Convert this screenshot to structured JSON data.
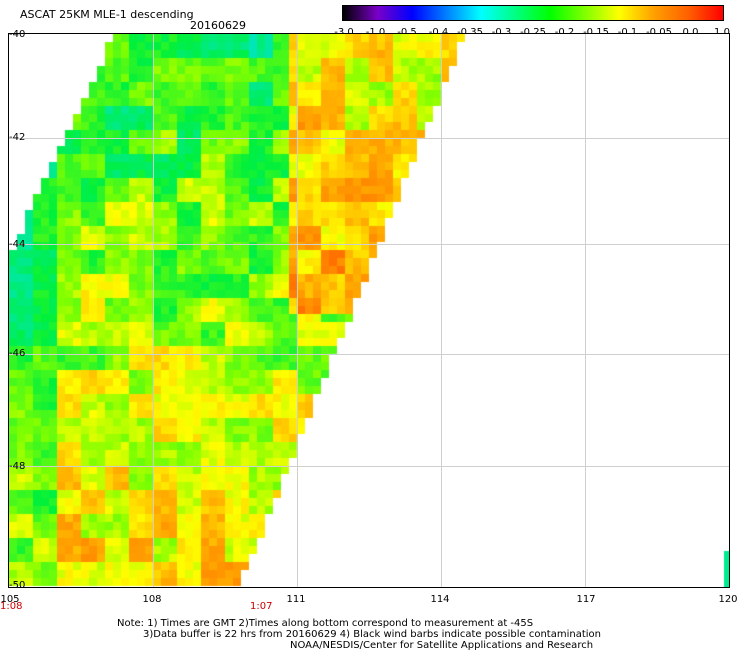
{
  "header": {
    "title": "ASCAT 25KM MLE-1 descending",
    "date": "20160629"
  },
  "colorbar": {
    "labels": [
      "-3.0",
      "-1.0",
      "-0.5",
      "-0.4",
      "-0.35",
      "-0.3",
      "-0.25",
      "-0.2",
      "-0.15",
      "-0.1",
      "-0.05",
      "0.0",
      "1.0"
    ],
    "colors": [
      "#000000",
      "#7a00c8",
      "#0000ff",
      "#0080ff",
      "#00ffff",
      "#00ff80",
      "#00ff00",
      "#80ff00",
      "#ffff00",
      "#ffa000",
      "#ff6000",
      "#ff0000"
    ]
  },
  "axes": {
    "x_ticks": [
      "105",
      "108",
      "111",
      "114",
      "117",
      "120"
    ],
    "y_ticks": [
      "-40",
      "-42",
      "-44",
      "-46",
      "-48",
      "-50"
    ],
    "times": [
      "1:08",
      "1:07"
    ]
  },
  "map_data": {
    "lon_range": [
      105,
      120
    ],
    "lat_range": [
      -50,
      -40
    ],
    "swath_edge_east": [
      [
        114.5,
        -40
      ],
      [
        109.8,
        -50
      ]
    ],
    "swath_edge_west": [
      [
        107.2,
        -40
      ],
      [
        105,
        -44
      ],
      [
        105,
        -50
      ]
    ]
  },
  "notes": {
    "line1": "Note: 1) Times are GMT 2)Times along bottom correspond to measurement at -45S",
    "line2": "3)Data buffer is 22 hrs from 20160629 4) Black wind barbs indicate possible contamination",
    "line3": "NOAA/NESDIS/Center for Satellite Applications and Research"
  }
}
